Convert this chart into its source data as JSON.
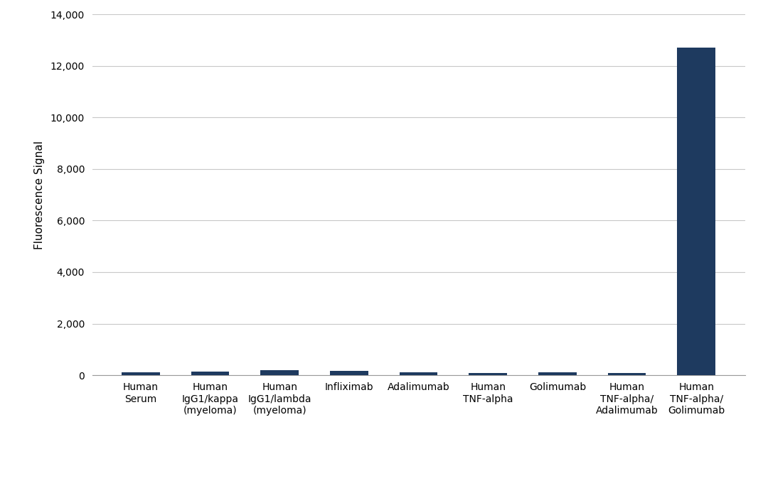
{
  "categories": [
    "Human\nSerum",
    "Human\nIgG1/kappa\n(myeloma)",
    "Human\nIgG1/lambda\n(myeloma)",
    "Infliximab",
    "Adalimumab",
    "Human\nTNF-alpha",
    "Golimumab",
    "Human\nTNF-alpha/\nAdalimumab",
    "Human\nTNF-alpha/\nGolimumab"
  ],
  "values": [
    120,
    150,
    200,
    160,
    100,
    80,
    110,
    90,
    12700
  ],
  "bar_color": "#1e3a5f",
  "ylabel": "Fluorescence Signal",
  "ylim": [
    0,
    14000
  ],
  "yticks": [
    0,
    2000,
    4000,
    6000,
    8000,
    10000,
    12000,
    14000
  ],
  "background_color": "#ffffff",
  "grid_color": "#c8c8c8",
  "ylabel_fontsize": 11,
  "tick_fontsize": 10,
  "bar_width": 0.55
}
